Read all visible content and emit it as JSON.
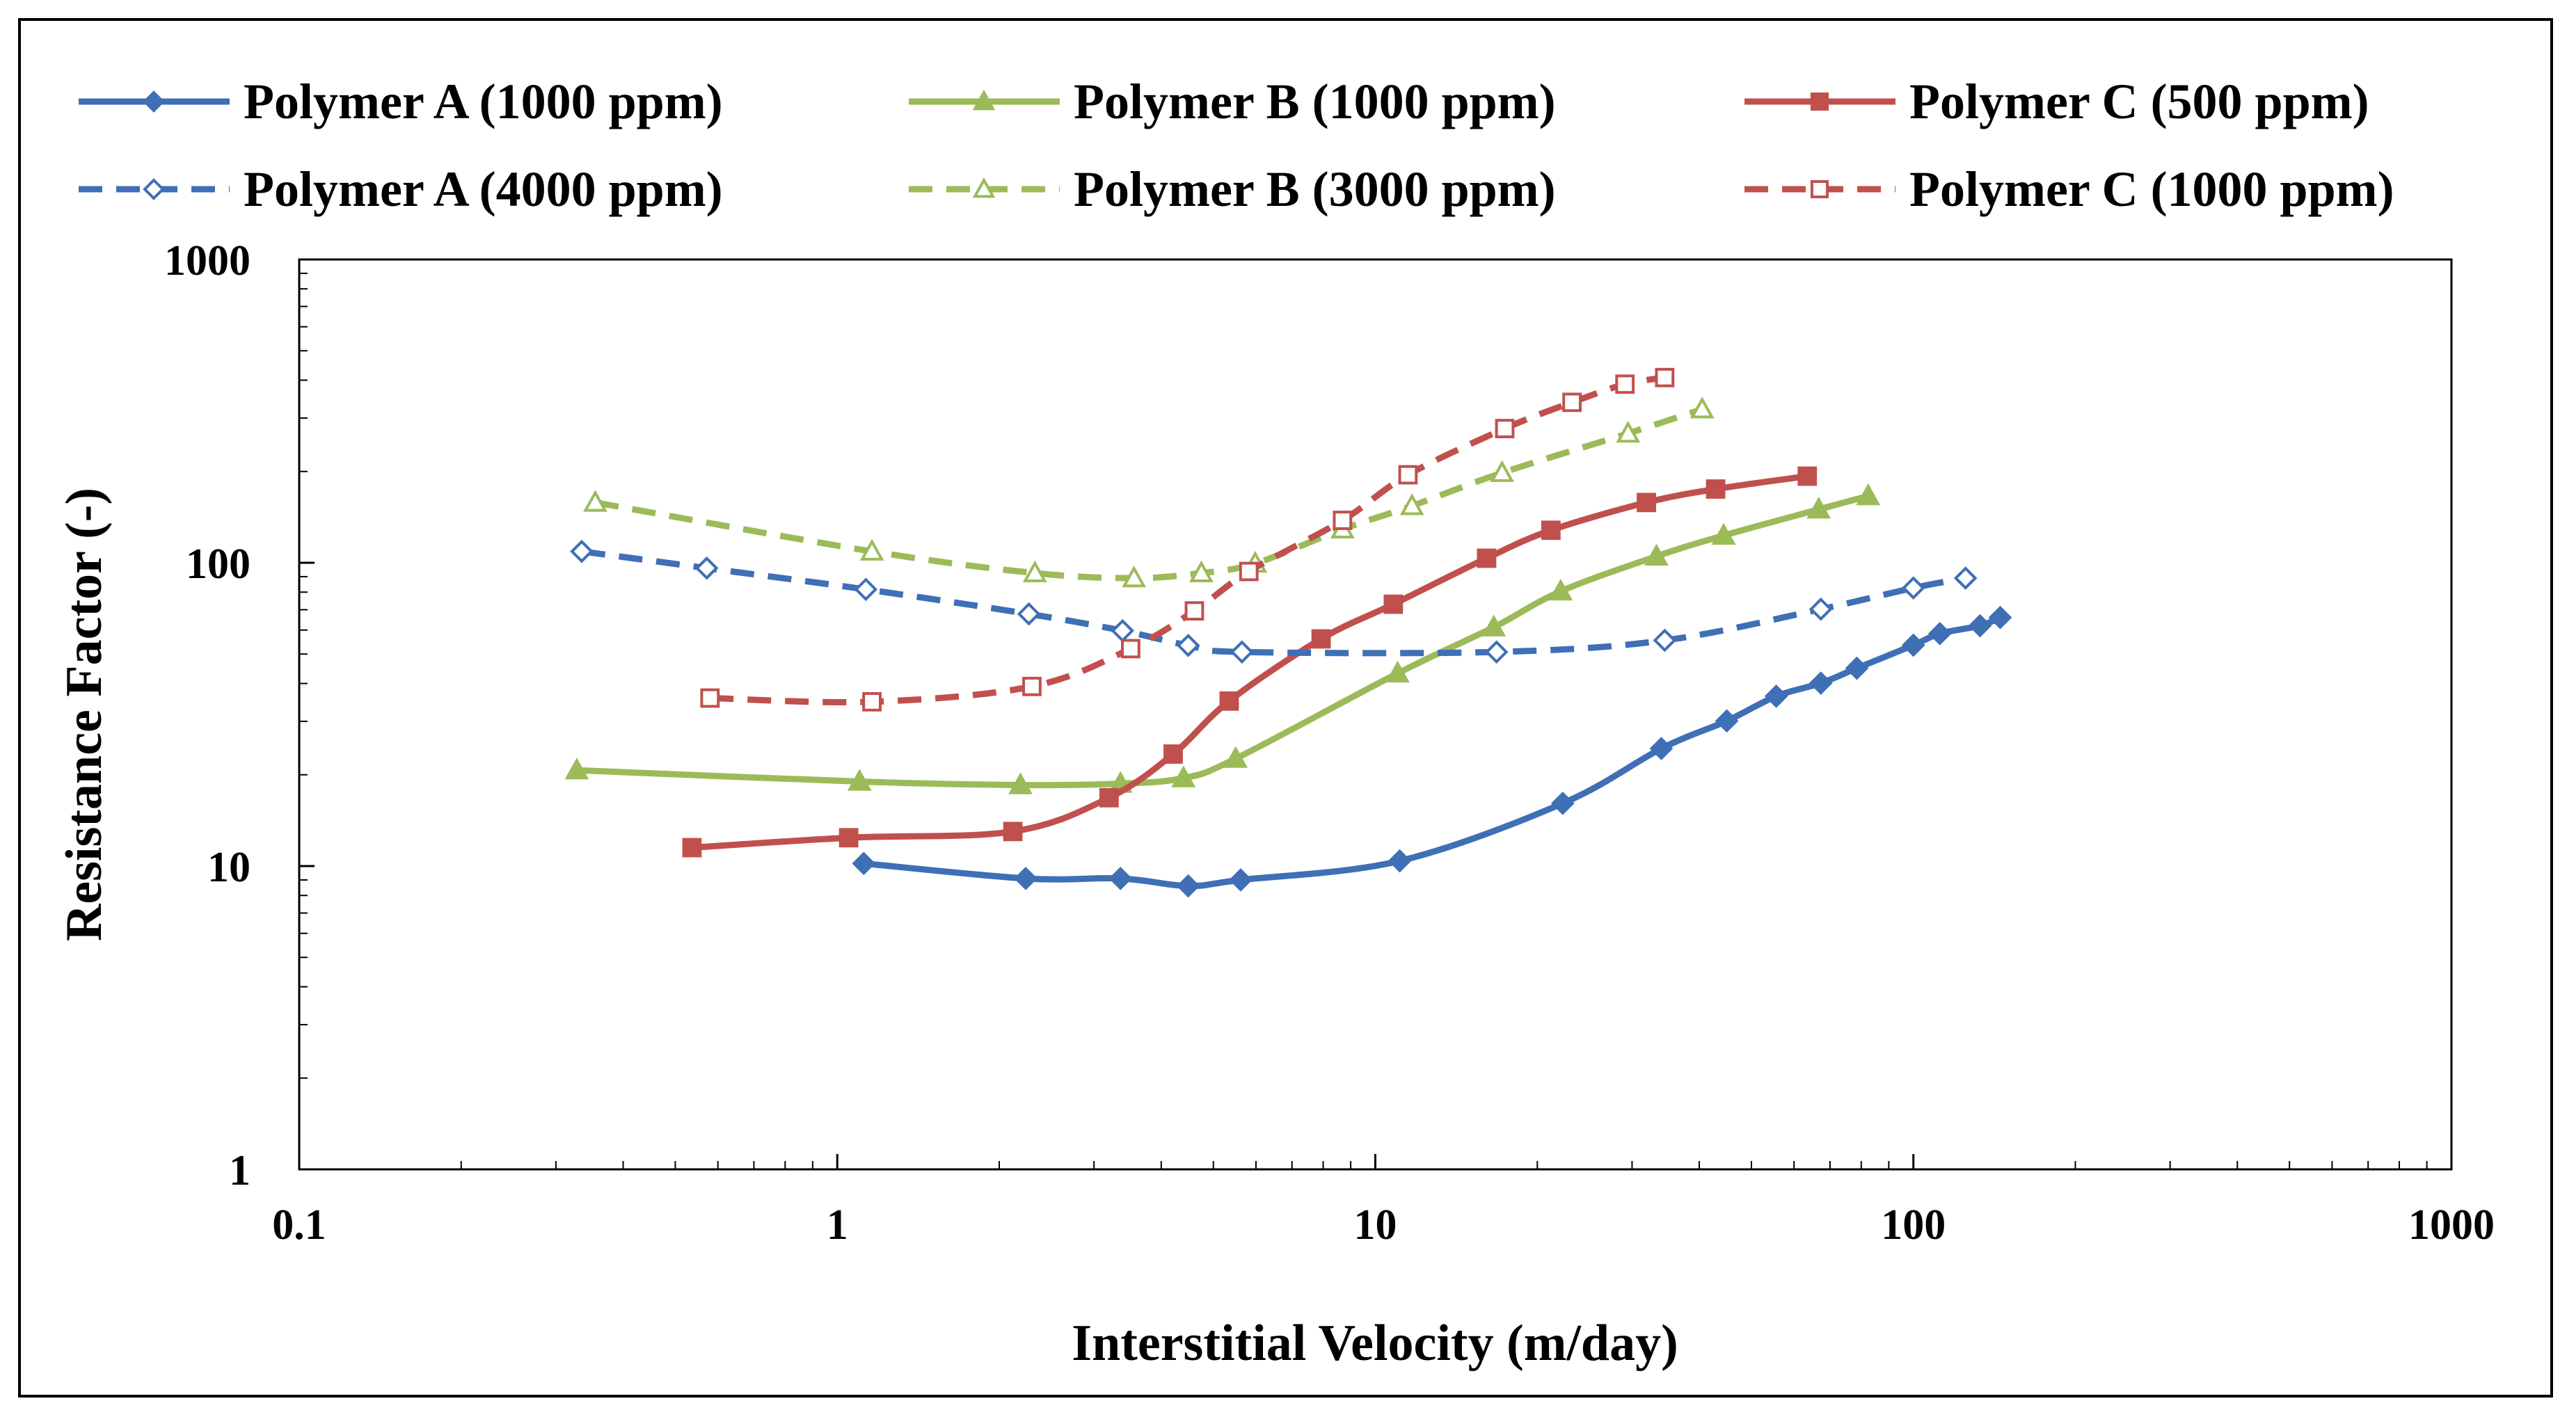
{
  "chart_data": {
    "type": "line",
    "title": "",
    "xlabel": "Interstitial Velocity (m/day)",
    "ylabel": "Resistance Factor (-)",
    "xscale": "log",
    "yscale": "log",
    "xlim": [
      0.1,
      1000
    ],
    "ylim": [
      1,
      1000
    ],
    "xticks": [
      "0.1",
      "1",
      "10",
      "100",
      "1000"
    ],
    "yticks": [
      "1",
      "10",
      "100",
      "1000"
    ],
    "grid": false,
    "legend_position": "top",
    "series": [
      {
        "name": "Polymer A (1000 ppm)",
        "color": "#3F6FB5",
        "dash": false,
        "marker": "diamond",
        "filled": true,
        "x": [
          1.12,
          2.24,
          3.36,
          4.49,
          5.62,
          11.1,
          22.3,
          34.0,
          45.0,
          55.6,
          67.3,
          78.5,
          100,
          112,
          133,
          145
        ],
        "y": [
          10.2,
          9.1,
          9.1,
          8.6,
          9.0,
          10.4,
          16.1,
          24.4,
          30.1,
          36.3,
          40.1,
          44.9,
          53.5,
          58.4,
          62,
          66
        ]
      },
      {
        "name": "Polymer B (1000 ppm)",
        "color": "#9BBB59",
        "dash": false,
        "marker": "triangle",
        "filled": true,
        "x": [
          0.328,
          1.1,
          2.19,
          3.36,
          4.4,
          5.5,
          11.0,
          16.6,
          22.1,
          33.3,
          44.4,
          66.7,
          82.4
        ],
        "y": [
          20.7,
          19.0,
          18.5,
          18.7,
          19.5,
          22.6,
          43.2,
          61.3,
          80.5,
          105,
          123,
          150,
          166
        ]
      },
      {
        "name": "Polymer C (500 ppm)",
        "color": "#C0504D",
        "dash": false,
        "marker": "square",
        "filled": true,
        "x": [
          0.537,
          1.05,
          2.12,
          3.2,
          4.21,
          5.35,
          7.93,
          10.8,
          16.1,
          21.2,
          31.9,
          42.9,
          63.5
        ],
        "y": [
          11.5,
          12.4,
          13.0,
          16.8,
          23.4,
          35.0,
          56.1,
          73,
          103.5,
          128,
          158,
          175,
          193
        ]
      },
      {
        "name": "Polymer A (4000 ppm)",
        "color": "#3F6FB5",
        "dash": true,
        "marker": "diamond",
        "filled": false,
        "x": [
          0.335,
          0.572,
          1.13,
          2.27,
          3.39,
          4.49,
          5.65,
          16.8,
          34.5,
          67.3,
          100,
          125
        ],
        "y": [
          109,
          96,
          81.7,
          67.8,
          59.7,
          53.4,
          50.8,
          50.8,
          55.5,
          70.3,
          82.6,
          89
        ]
      },
      {
        "name": "Polymer B (3000 ppm)",
        "color": "#9BBB59",
        "dash": true,
        "marker": "triangle",
        "filled": false,
        "x": [
          0.355,
          1.16,
          2.33,
          3.56,
          4.75,
          5.98,
          8.69,
          11.7,
          17.2,
          29.5,
          40.5
        ],
        "y": [
          158,
          109,
          92.5,
          89,
          92.5,
          99.5,
          129,
          154,
          198,
          267,
          321
        ]
      },
      {
        "name": "Polymer C (1000 ppm)",
        "color": "#C0504D",
        "dash": true,
        "marker": "square",
        "filled": false,
        "x": [
          0.58,
          1.16,
          2.3,
          3.51,
          4.61,
          5.82,
          8.69,
          11.5,
          17.4,
          23.2,
          29.1,
          34.5
        ],
        "y": [
          35.8,
          34.8,
          39.1,
          52.1,
          69.4,
          93.6,
          138,
          195,
          277,
          338,
          388,
          408
        ]
      }
    ]
  }
}
